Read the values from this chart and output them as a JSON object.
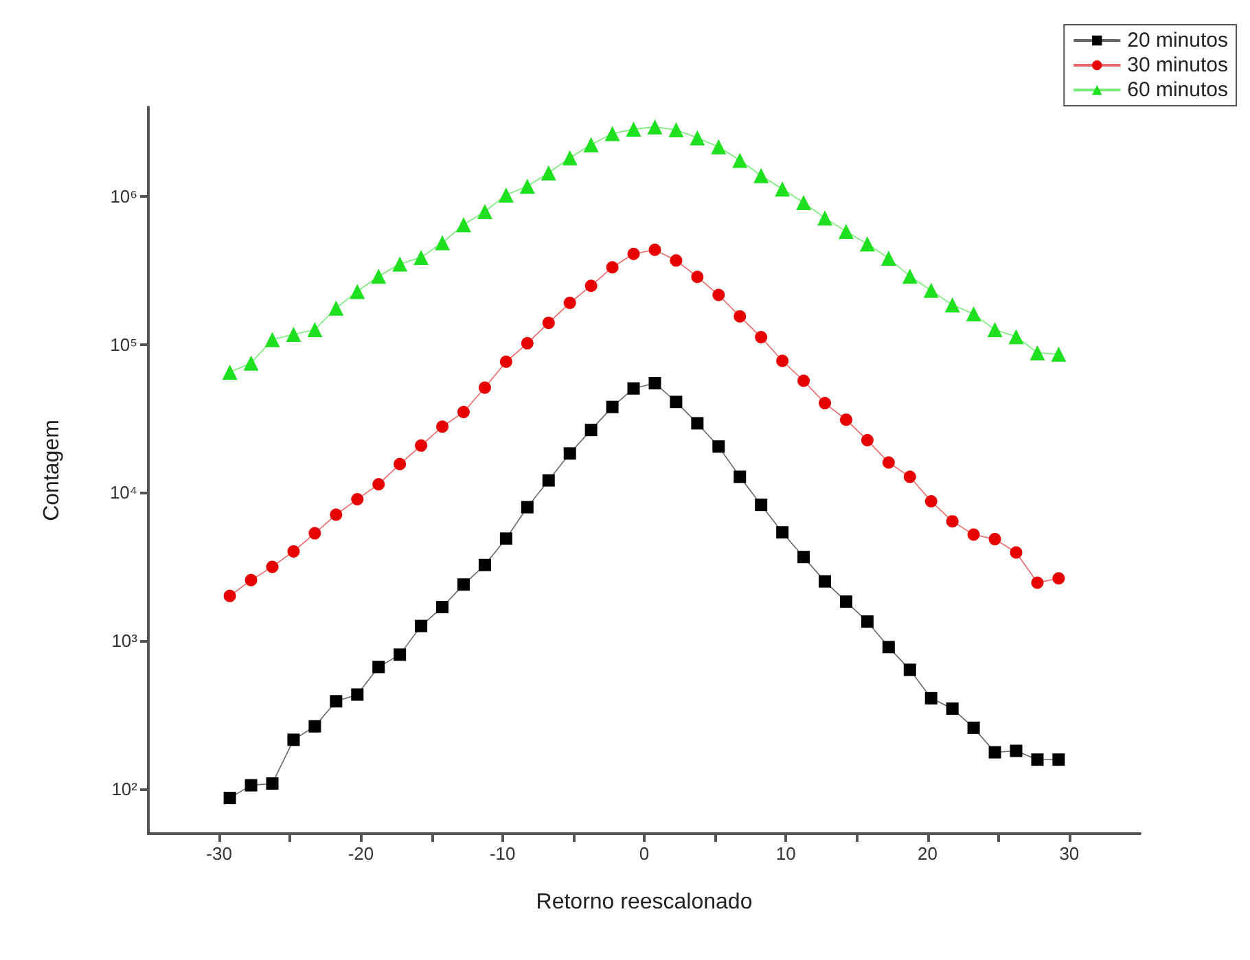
{
  "chart_data": {
    "type": "line",
    "xlabel": "Retorno reescalonado",
    "ylabel": "Contagem",
    "x": [
      -29.25,
      -27.75,
      -26.25,
      -24.75,
      -23.25,
      -21.75,
      -20.25,
      -18.75,
      -17.25,
      -15.75,
      -14.25,
      -12.75,
      -11.25,
      -9.75,
      -8.25,
      -6.75,
      -5.25,
      -3.75,
      -2.25,
      -0.75,
      0.75,
      2.25,
      3.75,
      5.25,
      6.75,
      8.25,
      9.75,
      11.25,
      12.75,
      14.25,
      15.75,
      17.25,
      18.75,
      20.25,
      21.75,
      23.25,
      24.75,
      26.25,
      27.75,
      29.25
    ],
    "series": [
      {
        "name": "20 minutos",
        "color": "#000000",
        "marker": "square",
        "values": [
          87,
          106,
          109,
          215,
          265,
          391,
          434,
          666,
          807,
          1260,
          1690,
          2400,
          3250,
          4900,
          7980,
          12100,
          18400,
          26500,
          37900,
          50500,
          54800,
          41000,
          29400,
          20500,
          12800,
          8280,
          5400,
          3680,
          2520,
          1840,
          1350,
          908,
          638,
          410,
          349,
          259,
          177,
          181,
          158,
          158
        ]
      },
      {
        "name": "30 minutos",
        "color": "#e60000",
        "marker": "circle",
        "values": [
          2010,
          2570,
          3160,
          4020,
          5320,
          7110,
          9030,
          11400,
          15600,
          20800,
          27900,
          35000,
          51200,
          76500,
          102000,
          140000,
          191000,
          249000,
          332000,
          409000,
          436000,
          369000,
          286000,
          216000,
          155000,
          112000,
          77600,
          56900,
          40200,
          31100,
          22600,
          16000,
          12800,
          8750,
          6410,
          5210,
          4860,
          3950,
          2470,
          2640
        ]
      },
      {
        "name": "60 minutos",
        "color": "#1ee01e",
        "marker": "triangle",
        "values": [
          65000,
          75000,
          108000,
          117000,
          126000,
          176000,
          228000,
          289000,
          349000,
          387000,
          486000,
          643000,
          791000,
          1020000,
          1170000,
          1440000,
          1820000,
          2230000,
          2650000,
          2840000,
          2940000,
          2810000,
          2480000,
          2160000,
          1750000,
          1380000,
          1120000,
          908000,
          713000,
          579000,
          477000,
          382000,
          289000,
          232000,
          185000,
          161000,
          126000,
          113000,
          88000,
          86000
        ]
      }
    ],
    "xlim": [
      -35,
      35
    ],
    "xticks": [
      -30,
      {
        "value": -25,
        "label": null
      },
      -20,
      {
        "value": -15,
        "label": null
      },
      -10,
      {
        "value": -5,
        "label": null
      },
      0,
      {
        "value": 5,
        "label": null
      },
      10,
      {
        "value": 15,
        "label": null
      },
      20,
      {
        "value": 25,
        "label": null
      },
      30
    ],
    "ylim": [
      50,
      4000000
    ],
    "yticks": [
      {
        "value": 100,
        "label": "10²"
      },
      {
        "value": 1000,
        "label": "10³"
      },
      {
        "value": 10000,
        "label": "10⁴"
      },
      {
        "value": 100000,
        "label": "10⁵"
      },
      {
        "value": 1000000,
        "label": "10⁶"
      }
    ],
    "log": "y",
    "grid": false,
    "legend": "top right",
    "line_style": "solid"
  }
}
